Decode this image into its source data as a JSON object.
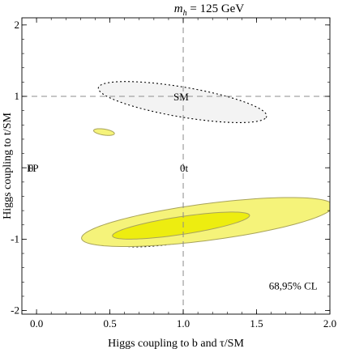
{
  "chart_data": {
    "type": "contour",
    "title_main": "m",
    "title_sub": "h",
    "title_rest": " = 125 GeV",
    "xlabel": "Higgs coupling to b and τ/SM",
    "ylabel": "Higgs coupling to t/SM",
    "xlim": [
      -0.1,
      2.0
    ],
    "ylim": [
      -2.05,
      2.1
    ],
    "x_ticks": [
      "0.0",
      "0.5",
      "1.0",
      "1.5",
      "2.0"
    ],
    "x_tick_values": [
      0.0,
      0.5,
      1.0,
      1.5,
      2.0
    ],
    "y_ticks": [
      "-2",
      "-1",
      "0",
      "1",
      "2"
    ],
    "y_tick_values": [
      -2,
      -1,
      0,
      1,
      2
    ],
    "reference_lines": {
      "x": 1.0,
      "y": 1.0
    },
    "annotations": [
      {
        "text": "SM",
        "x": 1.0,
        "y": 1.0
      },
      {
        "text": "0t",
        "x": 1.0,
        "y": 0.0
      },
      {
        "text": "FP",
        "x": 0.0,
        "y": 0.0
      },
      {
        "text": "0",
        "x": -0.1,
        "y": 0.0
      },
      {
        "text": "68,95% CL",
        "x": 1.75,
        "y": -1.65
      }
    ],
    "regions": [
      {
        "name": "dotted 95% CL (upper)",
        "style": "dotted",
        "fill": "#f3f3f3",
        "ellipse": {
          "cx": 0.995,
          "cy": 0.92,
          "rx": 0.61,
          "ry": 0.2,
          "angle_deg": -21
        }
      },
      {
        "name": "dotted 95% CL (lower)",
        "style": "dotted",
        "fill": "#f3f3f3",
        "ellipse": {
          "cx": 1.315,
          "cy": -0.8,
          "rx": 0.78,
          "ry": 0.14,
          "angle_deg": 21
        }
      },
      {
        "name": "95% CL (upper)",
        "style": "solid",
        "fill": "#f5f37a",
        "ellipse": {
          "cx": 0.46,
          "cy": 0.5,
          "rx": 0.075,
          "ry": 0.04,
          "angle_deg": -23
        }
      },
      {
        "name": "95% CL (lower)",
        "style": "solid",
        "fill": "#f5f37a",
        "ellipse": {
          "cx": 1.165,
          "cy": -0.76,
          "rx": 0.89,
          "ry": 0.25,
          "angle_deg": 16
        }
      },
      {
        "name": "68% CL (lower)",
        "style": "solid",
        "fill": "#eded10",
        "ellipse": {
          "cx": 0.985,
          "cy": -0.81,
          "rx": 0.49,
          "ry": 0.12,
          "angle_deg": 18
        }
      }
    ]
  },
  "colors": {
    "yellow_95": "#f5f37a",
    "yellow_68": "#eded10",
    "contour_line": "#a8a35a",
    "grey_fill": "#f3f3f3",
    "dashed_ref": "#8c8c8c"
  }
}
